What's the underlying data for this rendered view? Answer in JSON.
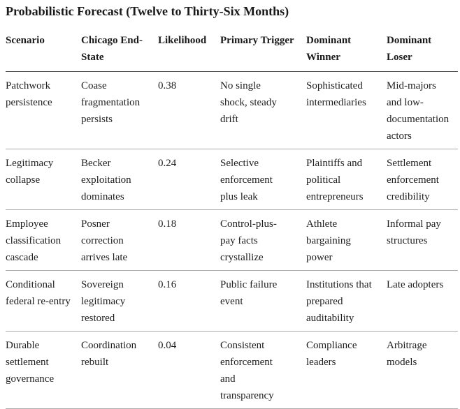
{
  "title": "Probabilistic Forecast (Twelve to Thirty-Six Months)",
  "table": {
    "columns": [
      "Scenario",
      "Chicago End-State",
      "Likelihood",
      "Primary Trigger",
      "Dominant Winner",
      "Dominant Loser"
    ],
    "rows": [
      {
        "scenario": "Patchwork persistence",
        "chicago_end_state": "Coase fragmentation persists",
        "likelihood": "0.38",
        "primary_trigger": "No single shock, steady drift",
        "dominant_winner": "Sophisticated intermediaries",
        "dominant_loser": "Mid-majors and low-documentation actors"
      },
      {
        "scenario": "Legitimacy collapse",
        "chicago_end_state": "Becker exploitation dominates",
        "likelihood": "0.24",
        "primary_trigger": "Selective enforcement plus leak",
        "dominant_winner": "Plaintiffs and political entrepreneurs",
        "dominant_loser": "Settlement enforcement credibility"
      },
      {
        "scenario": "Employee classification cascade",
        "chicago_end_state": "Posner correction arrives late",
        "likelihood": "0.18",
        "primary_trigger": "Control-plus-pay facts crystallize",
        "dominant_winner": "Athlete bargaining power",
        "dominant_loser": "Informal pay structures"
      },
      {
        "scenario": "Conditional federal re-entry",
        "chicago_end_state": "Sovereign legitimacy restored",
        "likelihood": "0.16",
        "primary_trigger": "Public failure event",
        "dominant_winner": "Institutions that prepared auditability",
        "dominant_loser": "Late adopters"
      },
      {
        "scenario": "Durable settlement governance",
        "chicago_end_state": "Coordination rebuilt",
        "likelihood": "0.04",
        "primary_trigger": "Consistent enforcement and transparency",
        "dominant_winner": "Compliance leaders",
        "dominant_loser": "Arbitrage models"
      }
    ]
  },
  "colors": {
    "background": "#ffffff",
    "text": "#1e1e1e",
    "header_rule": "#4d4d4d",
    "row_rule": "#ababab"
  }
}
